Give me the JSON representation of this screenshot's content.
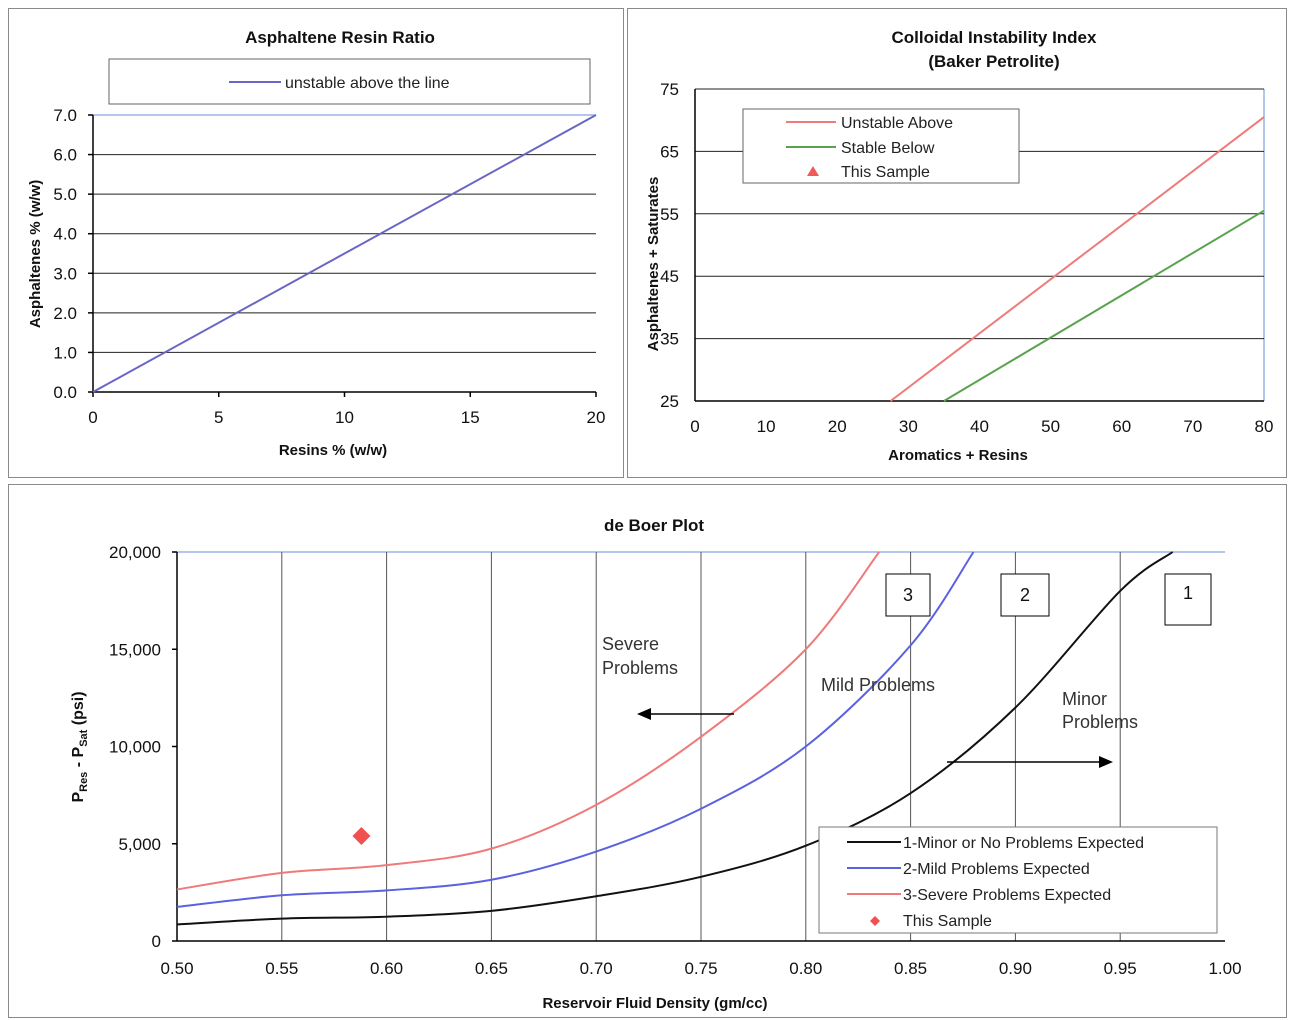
{
  "chart_data": [
    {
      "type": "line",
      "title": "Asphaltene Resin Ratio",
      "xlabel": "Resins % (w/w)",
      "ylabel": "Asphaltenes % (w/w)",
      "xlim": [
        0,
        20
      ],
      "ylim": [
        0,
        7
      ],
      "xticks": [
        "0",
        "5",
        "10",
        "15",
        "20"
      ],
      "yticks": [
        "0.0",
        "1.0",
        "2.0",
        "3.0",
        "4.0",
        "5.0",
        "6.0",
        "7.0"
      ],
      "grid": "horizontal",
      "legend_position": "top",
      "series": [
        {
          "name": "unstable above the line",
          "color": "#6a67c4",
          "x": [
            0,
            20
          ],
          "y": [
            0,
            7
          ]
        }
      ]
    },
    {
      "type": "line",
      "title": "Colloidal Instability Index",
      "subtitle": "(Baker Petrolite)",
      "xlabel": "Aromatics + Resins",
      "ylabel": "Asphaltenes + Saturates",
      "xlim": [
        0,
        80
      ],
      "ylim": [
        25,
        75
      ],
      "xticks": [
        "0",
        "10",
        "20",
        "30",
        "40",
        "50",
        "60",
        "70",
        "80"
      ],
      "yticks": [
        "25",
        "35",
        "45",
        "55",
        "65",
        "75"
      ],
      "grid": "horizontal",
      "legend_position": "top-left",
      "series": [
        {
          "name": "Unstable Above",
          "color": "#f07a7a",
          "x": [
            27.5,
            80
          ],
          "y": [
            25,
            70.5
          ]
        },
        {
          "name": "Stable Below",
          "color": "#5aa34e",
          "x": [
            35,
            80
          ],
          "y": [
            25,
            55.5
          ]
        },
        {
          "name": "This Sample",
          "color": "#f05a5a",
          "marker": "triangle",
          "x": [],
          "y": []
        }
      ]
    },
    {
      "type": "line",
      "title": "de Boer Plot",
      "xlabel": "Reservoir Fluid Density (gm/cc)",
      "ylabel_main": "P",
      "ylabel_sub1": "Res",
      "ylabel_mid": " - P",
      "ylabel_sub2": "Sat",
      "ylabel_end": " (psi)",
      "xlim": [
        0.5,
        1.0
      ],
      "ylim": [
        0,
        20000
      ],
      "xticks": [
        "0.50",
        "0.55",
        "0.60",
        "0.65",
        "0.70",
        "0.75",
        "0.80",
        "0.85",
        "0.90",
        "0.95",
        "1.00"
      ],
      "yticks": [
        "0",
        "5,000",
        "10,000",
        "15,000",
        "20,000"
      ],
      "grid": "vertical",
      "legend_position": "bottom-right",
      "series": [
        {
          "name": "1-Minor or No Problems Expected",
          "color": "#111111",
          "x": [
            0.5,
            0.55,
            0.6,
            0.65,
            0.7,
            0.75,
            0.8,
            0.85,
            0.9,
            0.95,
            0.975
          ],
          "y": [
            850,
            1150,
            1250,
            1550,
            2300,
            3300,
            4900,
            7600,
            12000,
            18000,
            20000
          ]
        },
        {
          "name": "2-Mild Problems Expected",
          "color": "#5a62e0",
          "x": [
            0.5,
            0.55,
            0.6,
            0.65,
            0.7,
            0.75,
            0.8,
            0.85,
            0.88
          ],
          "y": [
            1750,
            2350,
            2600,
            3150,
            4600,
            6800,
            10000,
            15200,
            20000
          ]
        },
        {
          "name": "3-Severe Problems Expected",
          "color": "#f07a7a",
          "x": [
            0.5,
            0.55,
            0.6,
            0.65,
            0.7,
            0.75,
            0.8,
            0.835
          ],
          "y": [
            2650,
            3500,
            3900,
            4750,
            7000,
            10500,
            15000,
            20000
          ]
        },
        {
          "name": "This Sample",
          "color": "#f05050",
          "marker": "diamond",
          "x": [
            0.588
          ],
          "y": [
            5400
          ]
        }
      ],
      "annotations": {
        "severe_line1": "Severe",
        "severe_line2": "Problems",
        "mild": "Mild Problems",
        "minor_line1": "Minor",
        "minor_line2": "Problems",
        "box3": "3",
        "box2": "2",
        "box1": "1"
      }
    }
  ]
}
